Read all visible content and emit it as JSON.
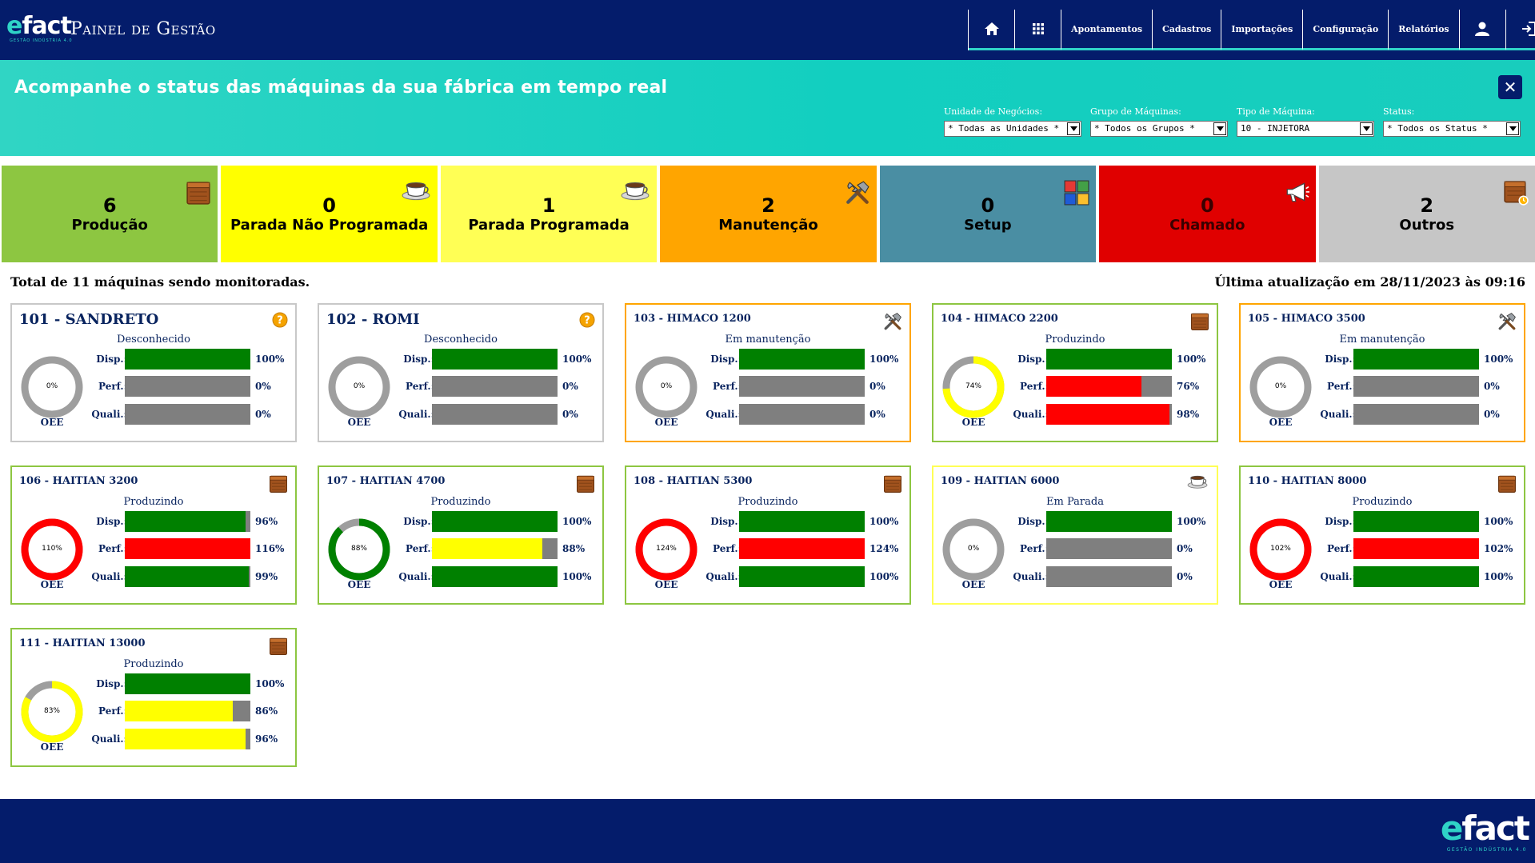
{
  "header": {
    "logo": "efact",
    "logo_tagline": "GESTÃO INDÚSTRIA 4.0",
    "title": "Painel de Gestão",
    "nav": [
      {
        "label": "",
        "icon": "home-icon"
      },
      {
        "label": "",
        "icon": "grid-icon"
      },
      {
        "label": "Apontamentos"
      },
      {
        "label": "Cadastros"
      },
      {
        "label": "Importações"
      },
      {
        "label": "Configuração"
      },
      {
        "label": "Relatórios"
      },
      {
        "label": "",
        "icon": "user-icon"
      },
      {
        "label": "",
        "icon": "logout-icon"
      }
    ]
  },
  "banner": {
    "title": "Acompanhe o status das máquinas da sua fábrica em tempo real",
    "close_label": "✕",
    "filters": [
      {
        "label": "Unidade de Negócios:",
        "value": "* Todas as Unidades *"
      },
      {
        "label": "Grupo de Máquinas:",
        "value": "* Todos os Grupos *"
      },
      {
        "label": "Tipo de Máquina:",
        "value": "10 - INJETORA"
      },
      {
        "label": "Status:",
        "value": "* Todos os Status *"
      }
    ]
  },
  "tiles": [
    {
      "count": "6",
      "label": "Produção",
      "bg": "#8dc641",
      "color": "#000000",
      "icon": "box-icon"
    },
    {
      "count": "0",
      "label": "Parada Não Programada",
      "bg": "#ffff00",
      "color": "#000000",
      "icon": "coffee-cup-icon"
    },
    {
      "count": "1",
      "label": "Parada Programada",
      "bg": "#ffff55",
      "color": "#000000",
      "icon": "coffee-cup-icon"
    },
    {
      "count": "2",
      "label": "Manutenção",
      "bg": "#ffa500",
      "color": "#000000",
      "icon": "tools-icon"
    },
    {
      "count": "0",
      "label": "Setup",
      "bg": "#4a8ea3",
      "color": "#000000",
      "icon": "setup-blocks-icon"
    },
    {
      "count": "0",
      "label": "Chamado",
      "bg": "#e00000",
      "color": "#3a0000",
      "icon": "megaphone-icon"
    },
    {
      "count": "2",
      "label": "Outros",
      "bg": "#c6c6c6",
      "color": "#000000",
      "icon": "box-clock-icon"
    }
  ],
  "summary": {
    "total": "Total de 11 máquinas sendo monitoradas.",
    "last_update": "Última atualização em 28/11/2023 às 09:16"
  },
  "labels": {
    "disp": "Disp.:",
    "perf": "Perf.:",
    "quali": "Quali.:",
    "oee": "OEE"
  },
  "machines": [
    {
      "title": "101 - SANDRETO",
      "status": "Desconhecido",
      "border": "#c8c8c8",
      "icon": "question-icon",
      "big": true,
      "oee": {
        "label": "0%",
        "value": 0,
        "color": "#aaaaaa"
      },
      "disp": {
        "label": "100%",
        "value": 100,
        "color": "#008000"
      },
      "perf": {
        "label": "0%",
        "value": 0,
        "color": "#7f7f7f"
      },
      "quali": {
        "label": "0%",
        "value": 0,
        "color": "#7f7f7f"
      }
    },
    {
      "title": "102 - ROMI",
      "status": "Desconhecido",
      "border": "#c8c8c8",
      "icon": "question-icon",
      "big": true,
      "oee": {
        "label": "0%",
        "value": 0,
        "color": "#aaaaaa"
      },
      "disp": {
        "label": "100%",
        "value": 100,
        "color": "#008000"
      },
      "perf": {
        "label": "0%",
        "value": 0,
        "color": "#7f7f7f"
      },
      "quali": {
        "label": "0%",
        "value": 0,
        "color": "#7f7f7f"
      }
    },
    {
      "title": "103 - HIMACO 1200",
      "status": "Em manutenção",
      "border": "#ffa500",
      "icon": "tools-icon",
      "oee": {
        "label": "0%",
        "value": 0,
        "color": "#aaaaaa"
      },
      "disp": {
        "label": "100%",
        "value": 100,
        "color": "#008000"
      },
      "perf": {
        "label": "0%",
        "value": 0,
        "color": "#7f7f7f"
      },
      "quali": {
        "label": "0%",
        "value": 0,
        "color": "#7f7f7f"
      }
    },
    {
      "title": "104 - HIMACO 2200",
      "status": "Produzindo",
      "border": "#8dc641",
      "icon": "box-icon",
      "oee": {
        "label": "74%",
        "value": 74,
        "color": "#ffff00"
      },
      "disp": {
        "label": "100%",
        "value": 100,
        "color": "#008000"
      },
      "perf": {
        "label": "76%",
        "value": 76,
        "color": "#ff0000"
      },
      "quali": {
        "label": "98%",
        "value": 98,
        "color": "#ff0000"
      }
    },
    {
      "title": "105 - HIMACO 3500",
      "status": "Em manutenção",
      "border": "#ffa500",
      "icon": "tools-icon",
      "oee": {
        "label": "0%",
        "value": 0,
        "color": "#aaaaaa"
      },
      "disp": {
        "label": "100%",
        "value": 100,
        "color": "#008000"
      },
      "perf": {
        "label": "0%",
        "value": 0,
        "color": "#7f7f7f"
      },
      "quali": {
        "label": "0%",
        "value": 0,
        "color": "#7f7f7f"
      }
    },
    {
      "title": "106 - HAITIAN 3200",
      "status": "Produzindo",
      "border": "#8dc641",
      "icon": "box-icon",
      "oee": {
        "label": "110%",
        "value": 110,
        "color": "#ff0000"
      },
      "disp": {
        "label": "96%",
        "value": 96,
        "color": "#008000"
      },
      "perf": {
        "label": "116%",
        "value": 116,
        "color": "#ff0000"
      },
      "quali": {
        "label": "99%",
        "value": 99,
        "color": "#008000"
      }
    },
    {
      "title": "107 - HAITIAN 4700",
      "status": "Produzindo",
      "border": "#8dc641",
      "icon": "box-icon",
      "oee": {
        "label": "88%",
        "value": 88,
        "color": "#008000"
      },
      "disp": {
        "label": "100%",
        "value": 100,
        "color": "#008000"
      },
      "perf": {
        "label": "88%",
        "value": 88,
        "color": "#ffff00"
      },
      "quali": {
        "label": "100%",
        "value": 100,
        "color": "#008000"
      }
    },
    {
      "title": "108 - HAITIAN 5300",
      "status": "Produzindo",
      "border": "#8dc641",
      "icon": "box-icon",
      "oee": {
        "label": "124%",
        "value": 124,
        "color": "#ff0000"
      },
      "disp": {
        "label": "100%",
        "value": 100,
        "color": "#008000"
      },
      "perf": {
        "label": "124%",
        "value": 124,
        "color": "#ff0000"
      },
      "quali": {
        "label": "100%",
        "value": 100,
        "color": "#008000"
      }
    },
    {
      "title": "109 - HAITIAN 6000",
      "status": "Em Parada",
      "border": "#ffff55",
      "icon": "coffee-cup-icon",
      "oee": {
        "label": "0%",
        "value": 0,
        "color": "#aaaaaa"
      },
      "disp": {
        "label": "100%",
        "value": 100,
        "color": "#008000"
      },
      "perf": {
        "label": "0%",
        "value": 0,
        "color": "#7f7f7f"
      },
      "quali": {
        "label": "0%",
        "value": 0,
        "color": "#7f7f7f"
      }
    },
    {
      "title": "110 - HAITIAN 8000",
      "status": "Produzindo",
      "border": "#8dc641",
      "icon": "box-icon",
      "oee": {
        "label": "102%",
        "value": 102,
        "color": "#ff0000"
      },
      "disp": {
        "label": "100%",
        "value": 100,
        "color": "#008000"
      },
      "perf": {
        "label": "102%",
        "value": 102,
        "color": "#ff0000"
      },
      "quali": {
        "label": "100%",
        "value": 100,
        "color": "#008000"
      }
    },
    {
      "title": "111 - HAITIAN 13000",
      "status": "Produzindo",
      "border": "#8dc641",
      "icon": "box-icon",
      "oee": {
        "label": "83%",
        "value": 83,
        "color": "#ffff00"
      },
      "disp": {
        "label": "100%",
        "value": 100,
        "color": "#008000"
      },
      "perf": {
        "label": "86%",
        "value": 86,
        "color": "#ffff00"
      },
      "quali": {
        "label": "96%",
        "value": 96,
        "color": "#ffff00"
      }
    }
  ],
  "footer": {
    "logo": "efact",
    "tagline": "GESTÃO INDÚSTRIA 4.0"
  }
}
